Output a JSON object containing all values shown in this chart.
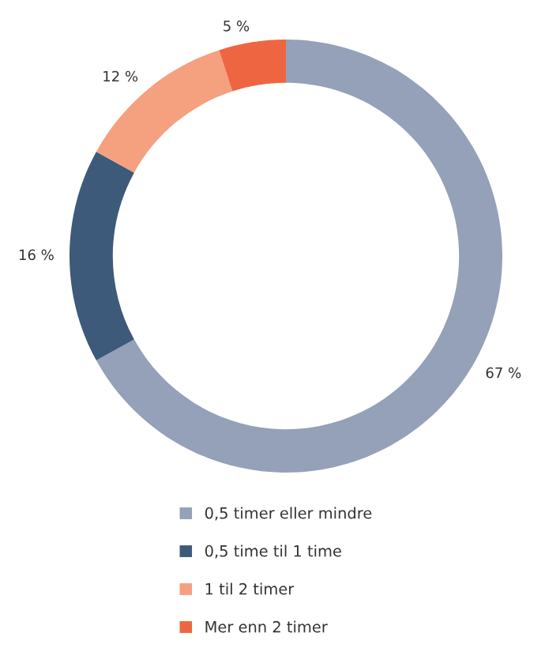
{
  "chart_data": {
    "type": "donut",
    "categories": [
      "0,5 timer eller mindre",
      "0,5 time til 1 time",
      "1 til 2 timer",
      "Mer enn 2 timer"
    ],
    "values": [
      67,
      16,
      12,
      5
    ],
    "colors": [
      "#94a1b9",
      "#3e5a7b",
      "#f5a07f",
      "#ee6641"
    ],
    "value_labels": [
      "67 %",
      "16 %",
      "12 %",
      "5 %"
    ],
    "legend": "bottom"
  }
}
